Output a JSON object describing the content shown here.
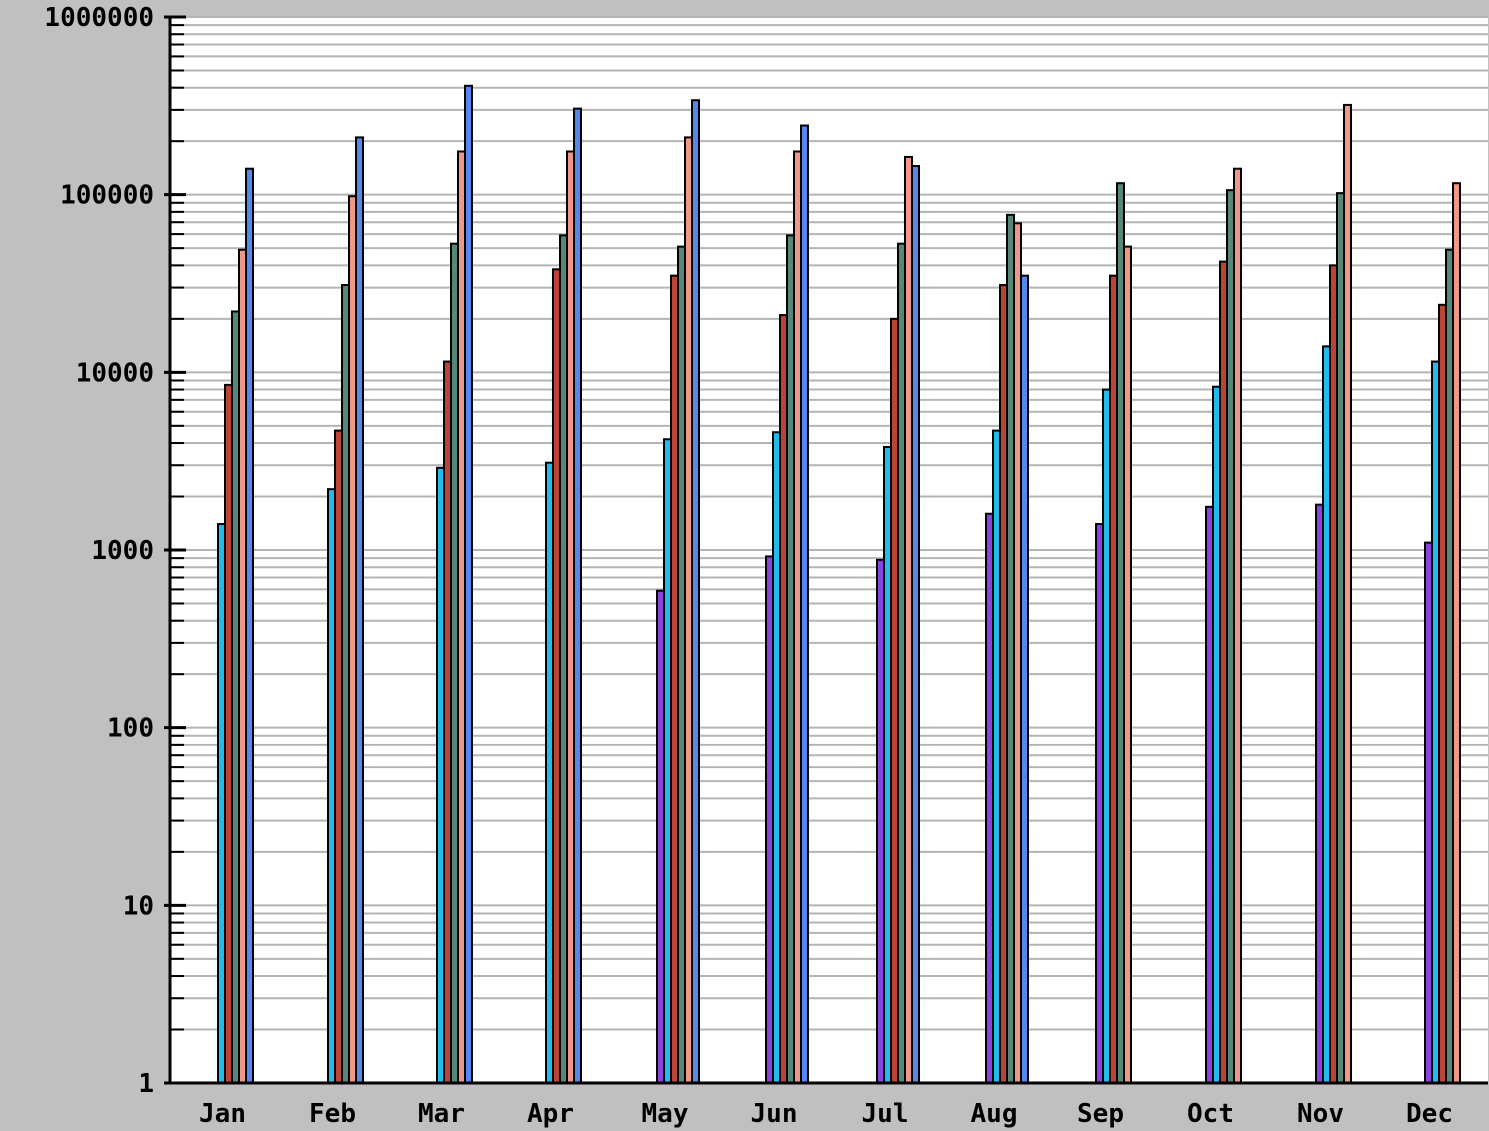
{
  "chart_data": {
    "type": "bar",
    "title": "",
    "xlabel": "",
    "ylabel": "",
    "yscale": "log",
    "ylim": [
      1,
      1000000
    ],
    "ytick_labels": [
      "1",
      "10",
      "100",
      "1000",
      "10000",
      "100000",
      "1000000"
    ],
    "grid": true,
    "categories": [
      "Jan",
      "Feb",
      "Mar",
      "Apr",
      "May",
      "Jun",
      "Jul",
      "Aug",
      "Sep",
      "Oct",
      "Nov",
      "Dec"
    ],
    "series_colors": [
      "#8844dd",
      "#22bbee",
      "#bb4433",
      "#558877",
      "#ee9988",
      "#5588ee"
    ],
    "months": [
      {
        "first": 1,
        "values": [
          1400,
          8500,
          22000,
          49000,
          140000
        ]
      },
      {
        "first": 1,
        "values": [
          2200,
          4700,
          31000,
          98000,
          210000
        ]
      },
      {
        "first": 1,
        "values": [
          2900,
          11500,
          53000,
          175000,
          410000
        ]
      },
      {
        "first": 1,
        "values": [
          3100,
          38000,
          59000,
          175000,
          305000
        ]
      },
      {
        "first": 0,
        "values": [
          590,
          4200,
          35000,
          51000,
          210000,
          340000
        ]
      },
      {
        "first": 0,
        "values": [
          920,
          4600,
          21000,
          59000,
          175000,
          245000
        ]
      },
      {
        "first": 0,
        "values": [
          880,
          3800,
          20000,
          53000,
          163000,
          145000
        ]
      },
      {
        "first": 0,
        "values": [
          1600,
          4700,
          31000,
          77000,
          69000,
          35000
        ]
      },
      {
        "first": 0,
        "values": [
          1400,
          8000,
          35000,
          116000,
          51000
        ]
      },
      {
        "first": 0,
        "values": [
          1750,
          8300,
          42000,
          106000,
          140000
        ]
      },
      {
        "first": 0,
        "values": [
          1800,
          14000,
          40000,
          102000,
          320000
        ]
      },
      {
        "first": 0,
        "values": [
          1100,
          11500,
          24000,
          49000,
          116000
        ]
      }
    ]
  }
}
